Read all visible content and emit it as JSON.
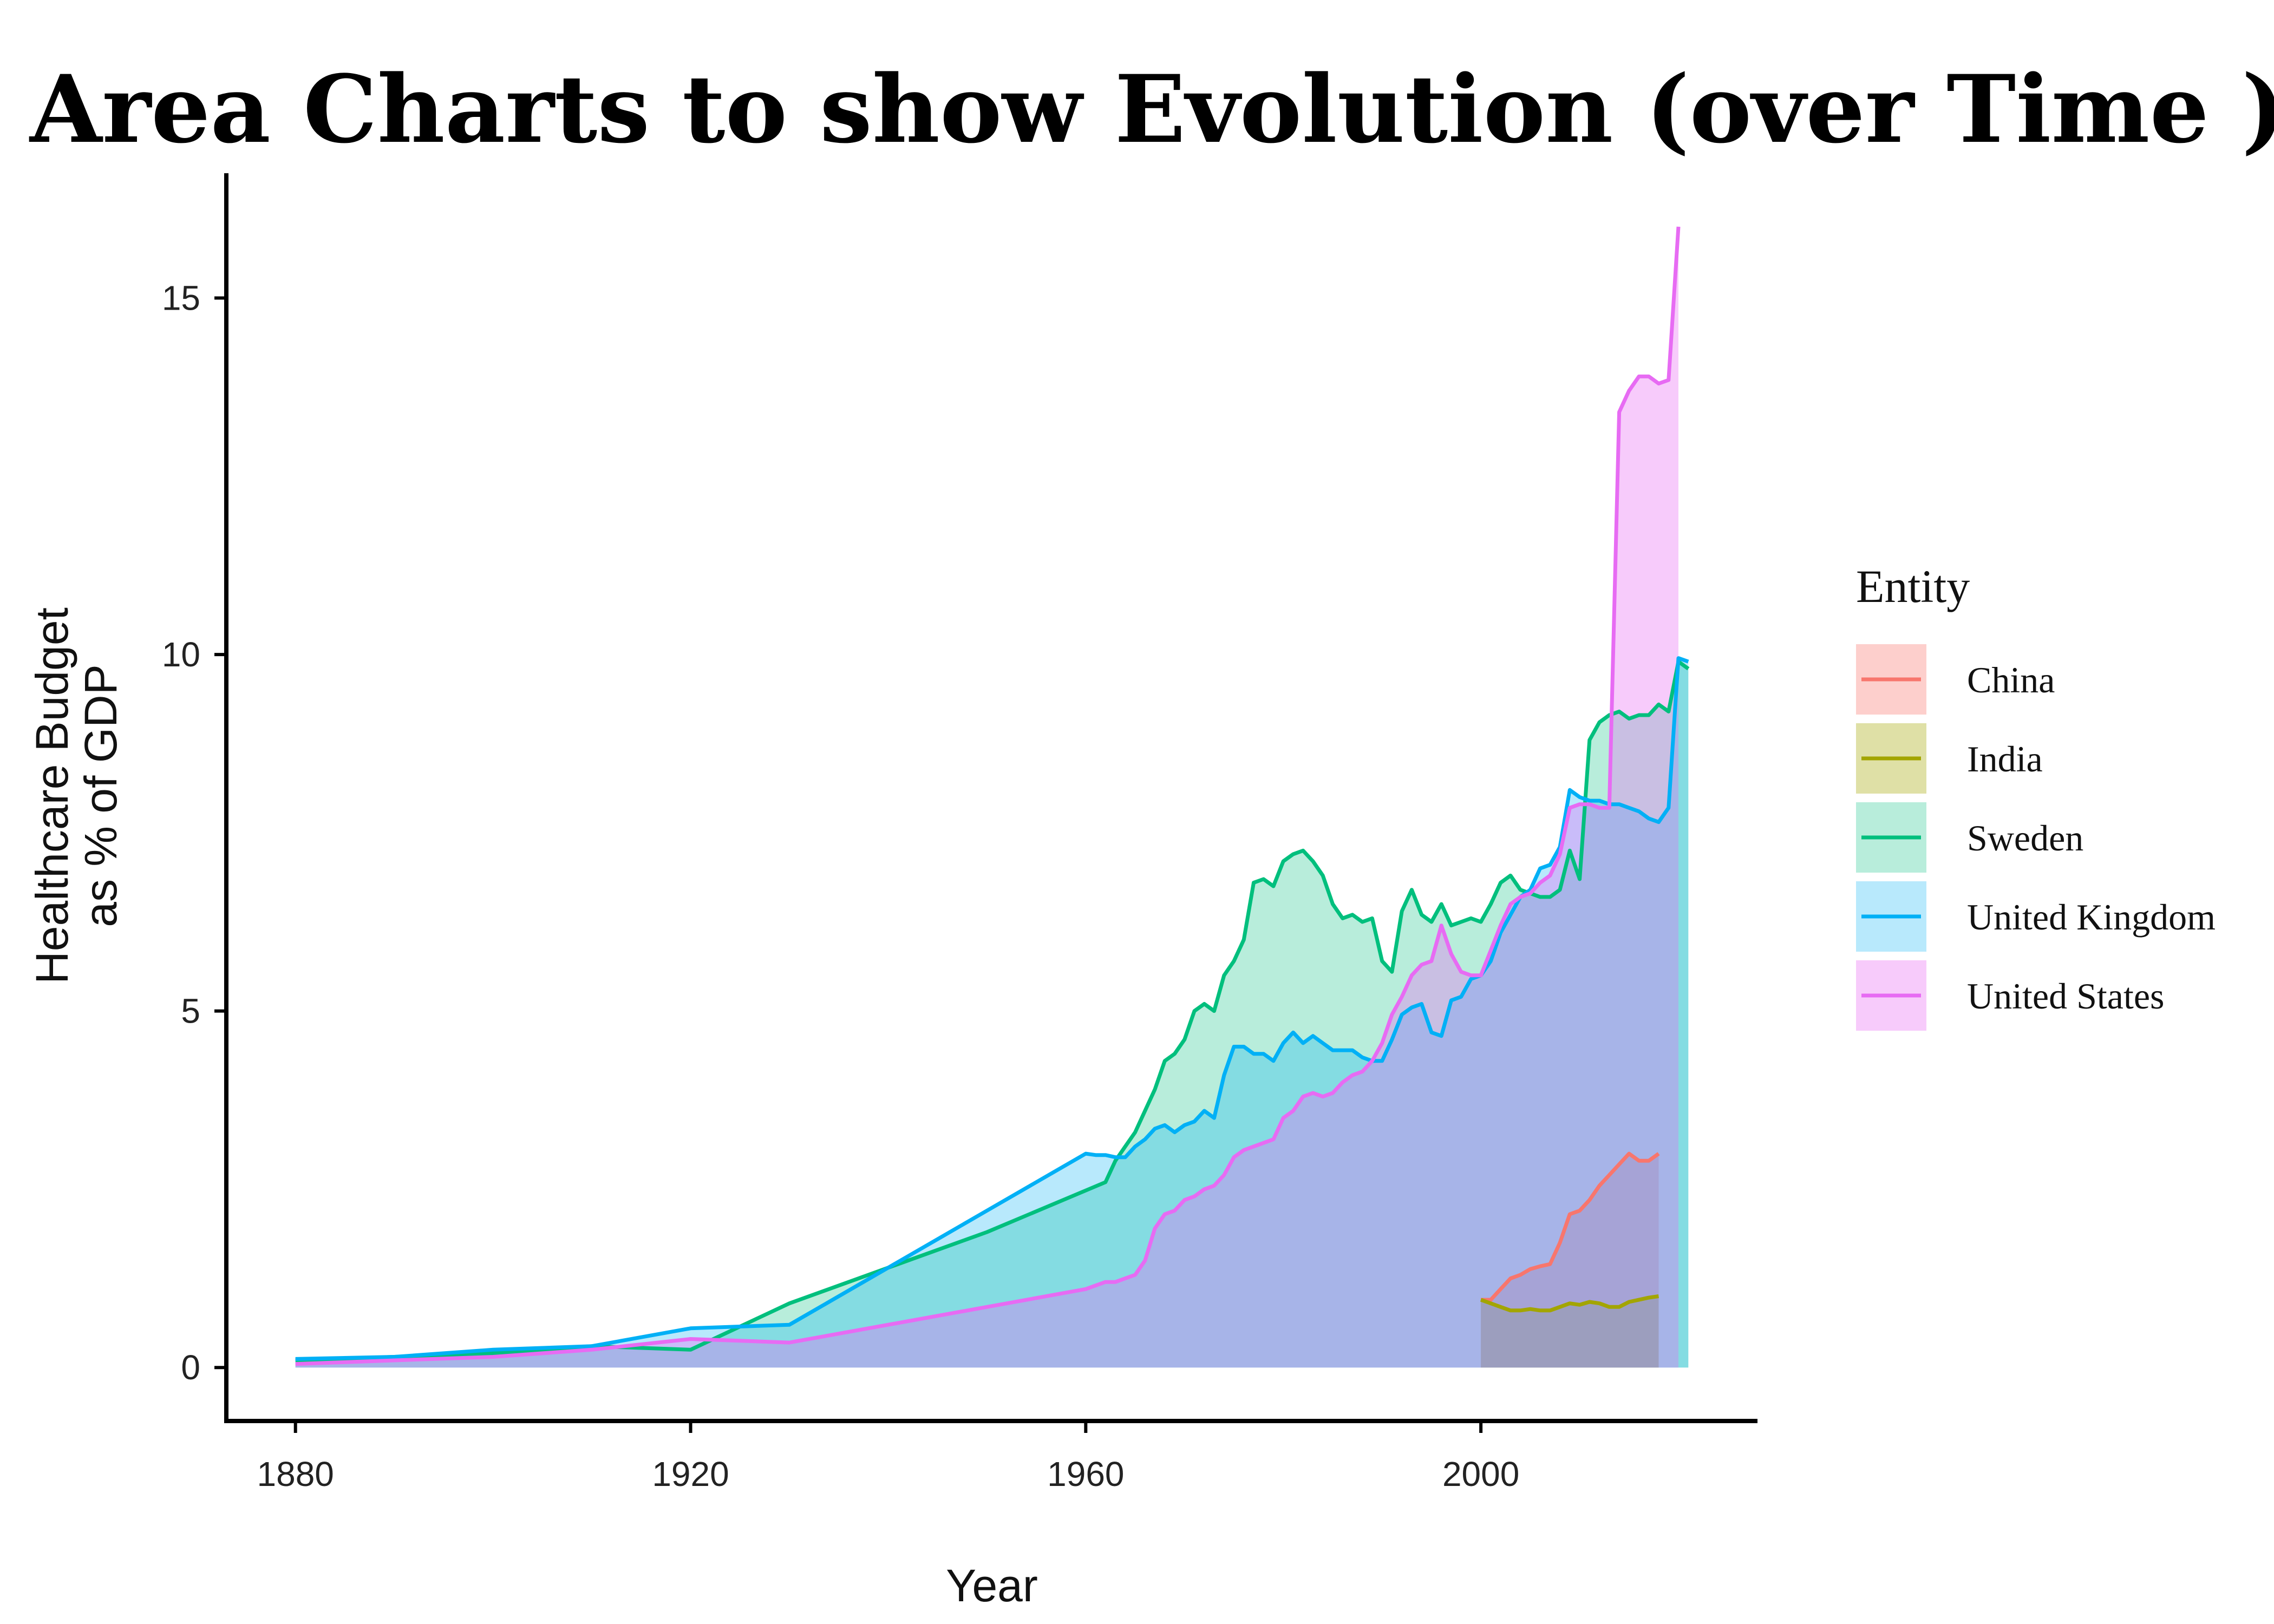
{
  "chart_data": {
    "type": "area",
    "title": "Area Charts to show Evolution (over Time )",
    "xlabel": "Year",
    "ylabel_lines": [
      "Healthcare Budget",
      "as % of GDP"
    ],
    "xlim": [
      1873,
      2028
    ],
    "ylim": [
      -0.75,
      16.75
    ],
    "x_ticks": [
      1880,
      1920,
      1960,
      2000
    ],
    "x_tick_labels": [
      "1880",
      "1920",
      "1960",
      "2000"
    ],
    "y_ticks": [
      0,
      5,
      10,
      15
    ],
    "y_tick_labels": [
      "0",
      "5",
      "10",
      "15"
    ],
    "grid": false,
    "legend": {
      "title": "Entity",
      "position": "right"
    },
    "series": [
      {
        "name": "China",
        "color": "#F8766D",
        "fill_opacity": 0.35,
        "points": [
          [
            2000,
            0.95
          ],
          [
            2001,
            0.95
          ],
          [
            2002,
            1.1
          ],
          [
            2003,
            1.25
          ],
          [
            2004,
            1.3
          ],
          [
            2005,
            1.38
          ],
          [
            2006,
            1.42
          ],
          [
            2007,
            1.45
          ],
          [
            2008,
            1.75
          ],
          [
            2009,
            2.15
          ],
          [
            2010,
            2.2
          ],
          [
            2011,
            2.35
          ],
          [
            2012,
            2.55
          ],
          [
            2013,
            2.7
          ],
          [
            2014,
            2.85
          ],
          [
            2015,
            3.0
          ],
          [
            2016,
            2.9
          ],
          [
            2017,
            2.9
          ],
          [
            2018,
            3.0
          ]
        ]
      },
      {
        "name": "India",
        "color": "#A3A500",
        "fill_opacity": 0.35,
        "points": [
          [
            2000,
            0.95
          ],
          [
            2001,
            0.9
          ],
          [
            2002,
            0.85
          ],
          [
            2003,
            0.8
          ],
          [
            2004,
            0.8
          ],
          [
            2005,
            0.82
          ],
          [
            2006,
            0.8
          ],
          [
            2007,
            0.8
          ],
          [
            2008,
            0.85
          ],
          [
            2009,
            0.9
          ],
          [
            2010,
            0.88
          ],
          [
            2011,
            0.92
          ],
          [
            2012,
            0.9
          ],
          [
            2013,
            0.85
          ],
          [
            2014,
            0.85
          ],
          [
            2015,
            0.92
          ],
          [
            2016,
            0.95
          ],
          [
            2017,
            0.98
          ],
          [
            2018,
            1.0
          ]
        ]
      },
      {
        "name": "Sweden",
        "color": "#00BF7D",
        "fill_opacity": 0.28,
        "points": [
          [
            1880,
            0.1
          ],
          [
            1890,
            0.15
          ],
          [
            1900,
            0.2
          ],
          [
            1910,
            0.3
          ],
          [
            1920,
            0.25
          ],
          [
            1930,
            0.9
          ],
          [
            1940,
            1.4
          ],
          [
            1950,
            1.9
          ],
          [
            1962,
            2.6
          ],
          [
            1963,
            2.9
          ],
          [
            1964,
            3.1
          ],
          [
            1965,
            3.3
          ],
          [
            1966,
            3.6
          ],
          [
            1967,
            3.9
          ],
          [
            1968,
            4.3
          ],
          [
            1969,
            4.4
          ],
          [
            1970,
            4.6
          ],
          [
            1971,
            5.0
          ],
          [
            1972,
            5.1
          ],
          [
            1973,
            5.0
          ],
          [
            1974,
            5.5
          ],
          [
            1975,
            5.7
          ],
          [
            1976,
            6.0
          ],
          [
            1977,
            6.8
          ],
          [
            1978,
            6.85
          ],
          [
            1979,
            6.75
          ],
          [
            1980,
            7.1
          ],
          [
            1981,
            7.2
          ],
          [
            1982,
            7.25
          ],
          [
            1983,
            7.1
          ],
          [
            1984,
            6.9
          ],
          [
            1985,
            6.5
          ],
          [
            1986,
            6.3
          ],
          [
            1987,
            6.35
          ],
          [
            1988,
            6.25
          ],
          [
            1989,
            6.3
          ],
          [
            1990,
            5.7
          ],
          [
            1991,
            5.55
          ],
          [
            1992,
            6.4
          ],
          [
            1993,
            6.7
          ],
          [
            1994,
            6.35
          ],
          [
            1995,
            6.25
          ],
          [
            1996,
            6.5
          ],
          [
            1997,
            6.2
          ],
          [
            1998,
            6.25
          ],
          [
            1999,
            6.3
          ],
          [
            2000,
            6.25
          ],
          [
            2001,
            6.5
          ],
          [
            2002,
            6.8
          ],
          [
            2003,
            6.9
          ],
          [
            2004,
            6.7
          ],
          [
            2005,
            6.65
          ],
          [
            2006,
            6.6
          ],
          [
            2007,
            6.6
          ],
          [
            2008,
            6.7
          ],
          [
            2009,
            7.25
          ],
          [
            2010,
            6.85
          ],
          [
            2011,
            8.8
          ],
          [
            2012,
            9.05
          ],
          [
            2013,
            9.15
          ],
          [
            2014,
            9.2
          ],
          [
            2015,
            9.1
          ],
          [
            2016,
            9.15
          ],
          [
            2017,
            9.15
          ],
          [
            2018,
            9.3
          ],
          [
            2019,
            9.2
          ],
          [
            2020,
            9.9
          ],
          [
            2021,
            9.8
          ]
        ]
      },
      {
        "name": "United Kingdom",
        "color": "#00B0F6",
        "fill_opacity": 0.28,
        "points": [
          [
            1880,
            0.12
          ],
          [
            1890,
            0.15
          ],
          [
            1900,
            0.25
          ],
          [
            1910,
            0.3
          ],
          [
            1920,
            0.55
          ],
          [
            1930,
            0.6
          ],
          [
            1940,
            1.4
          ],
          [
            1950,
            2.2
          ],
          [
            1960,
            3.0
          ],
          [
            1961,
            2.98
          ],
          [
            1962,
            2.98
          ],
          [
            1963,
            2.95
          ],
          [
            1964,
            2.95
          ],
          [
            1965,
            3.1
          ],
          [
            1966,
            3.2
          ],
          [
            1967,
            3.35
          ],
          [
            1968,
            3.4
          ],
          [
            1969,
            3.3
          ],
          [
            1970,
            3.4
          ],
          [
            1971,
            3.45
          ],
          [
            1972,
            3.6
          ],
          [
            1973,
            3.5
          ],
          [
            1974,
            4.1
          ],
          [
            1975,
            4.5
          ],
          [
            1976,
            4.5
          ],
          [
            1977,
            4.4
          ],
          [
            1978,
            4.4
          ],
          [
            1979,
            4.3
          ],
          [
            1980,
            4.55
          ],
          [
            1981,
            4.7
          ],
          [
            1982,
            4.55
          ],
          [
            1983,
            4.65
          ],
          [
            1984,
            4.55
          ],
          [
            1985,
            4.45
          ],
          [
            1986,
            4.45
          ],
          [
            1987,
            4.45
          ],
          [
            1988,
            4.35
          ],
          [
            1989,
            4.3
          ],
          [
            1990,
            4.3
          ],
          [
            1991,
            4.6
          ],
          [
            1992,
            4.95
          ],
          [
            1993,
            5.05
          ],
          [
            1994,
            5.1
          ],
          [
            1995,
            4.7
          ],
          [
            1996,
            4.65
          ],
          [
            1997,
            5.15
          ],
          [
            1998,
            5.2
          ],
          [
            1999,
            5.45
          ],
          [
            2000,
            5.5
          ],
          [
            2001,
            5.7
          ],
          [
            2002,
            6.1
          ],
          [
            2003,
            6.35
          ],
          [
            2004,
            6.6
          ],
          [
            2005,
            6.7
          ],
          [
            2006,
            7.0
          ],
          [
            2007,
            7.05
          ],
          [
            2008,
            7.3
          ],
          [
            2009,
            8.1
          ],
          [
            2010,
            8.0
          ],
          [
            2011,
            7.95
          ],
          [
            2012,
            7.95
          ],
          [
            2013,
            7.9
          ],
          [
            2014,
            7.9
          ],
          [
            2015,
            7.85
          ],
          [
            2016,
            7.8
          ],
          [
            2017,
            7.7
          ],
          [
            2018,
            7.65
          ],
          [
            2019,
            7.85
          ],
          [
            2020,
            9.95
          ],
          [
            2021,
            9.9
          ]
        ]
      },
      {
        "name": "United States",
        "color": "#E76BF3",
        "fill_opacity": 0.35,
        "points": [
          [
            1880,
            0.05
          ],
          [
            1890,
            0.1
          ],
          [
            1900,
            0.15
          ],
          [
            1910,
            0.25
          ],
          [
            1920,
            0.4
          ],
          [
            1930,
            0.35
          ],
          [
            1940,
            0.6
          ],
          [
            1950,
            0.85
          ],
          [
            1960,
            1.1
          ],
          [
            1961,
            1.15
          ],
          [
            1962,
            1.2
          ],
          [
            1963,
            1.2
          ],
          [
            1964,
            1.25
          ],
          [
            1965,
            1.3
          ],
          [
            1966,
            1.5
          ],
          [
            1967,
            1.95
          ],
          [
            1968,
            2.15
          ],
          [
            1969,
            2.2
          ],
          [
            1970,
            2.35
          ],
          [
            1971,
            2.4
          ],
          [
            1972,
            2.5
          ],
          [
            1973,
            2.55
          ],
          [
            1974,
            2.7
          ],
          [
            1975,
            2.95
          ],
          [
            1976,
            3.05
          ],
          [
            1977,
            3.1
          ],
          [
            1978,
            3.15
          ],
          [
            1979,
            3.2
          ],
          [
            1980,
            3.5
          ],
          [
            1981,
            3.6
          ],
          [
            1982,
            3.8
          ],
          [
            1983,
            3.85
          ],
          [
            1984,
            3.8
          ],
          [
            1985,
            3.85
          ],
          [
            1986,
            4.0
          ],
          [
            1987,
            4.1
          ],
          [
            1988,
            4.15
          ],
          [
            1989,
            4.3
          ],
          [
            1990,
            4.55
          ],
          [
            1991,
            4.95
          ],
          [
            1992,
            5.2
          ],
          [
            1993,
            5.5
          ],
          [
            1994,
            5.65
          ],
          [
            1995,
            5.7
          ],
          [
            1996,
            6.2
          ],
          [
            1997,
            5.8
          ],
          [
            1998,
            5.55
          ],
          [
            1999,
            5.5
          ],
          [
            2000,
            5.5
          ],
          [
            2001,
            5.85
          ],
          [
            2002,
            6.2
          ],
          [
            2003,
            6.5
          ],
          [
            2004,
            6.6
          ],
          [
            2005,
            6.65
          ],
          [
            2006,
            6.8
          ],
          [
            2007,
            6.9
          ],
          [
            2008,
            7.2
          ],
          [
            2009,
            7.85
          ],
          [
            2010,
            7.9
          ],
          [
            2011,
            7.9
          ],
          [
            2012,
            7.85
          ],
          [
            2013,
            7.85
          ],
          [
            2014,
            13.4
          ],
          [
            2015,
            13.7
          ],
          [
            2016,
            13.9
          ],
          [
            2017,
            13.9
          ],
          [
            2018,
            13.8
          ],
          [
            2019,
            13.85
          ],
          [
            2020,
            16.0
          ]
        ]
      }
    ]
  }
}
